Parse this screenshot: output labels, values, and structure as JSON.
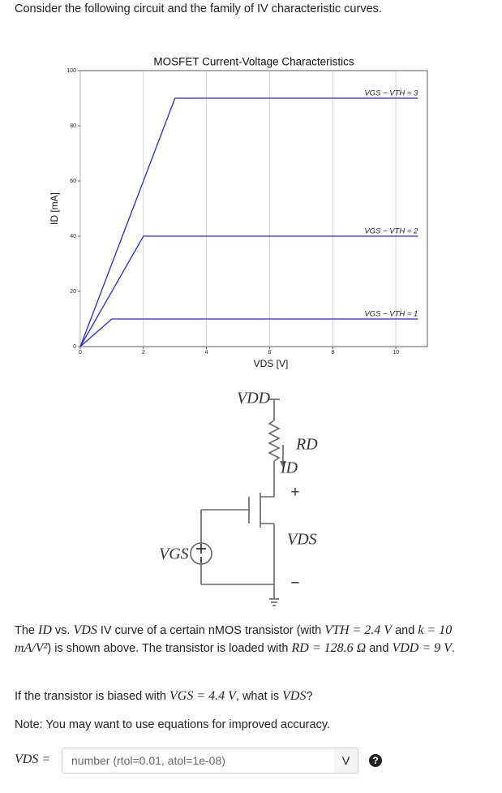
{
  "header": "Consider the following circuit and the family of IV characteristic curves.",
  "chart_data": {
    "type": "line",
    "title": "MOSFET Current-Voltage Characteristics",
    "x_label": "VDS [V]",
    "y_label": "ID [mA]",
    "xlim": [
      0,
      11
    ],
    "ylim": [
      0,
      100
    ],
    "xticks": [
      0,
      2,
      4,
      6,
      8,
      10
    ],
    "yticks": [
      0,
      20,
      40,
      60,
      80,
      100
    ],
    "grid": "x",
    "series": [
      {
        "name": "VGS − VTH = 1",
        "color": "#2a2ac8",
        "x": [
          0,
          1,
          10.7
        ],
        "values": [
          0,
          10,
          10
        ]
      },
      {
        "name": "VGS − VTH = 2",
        "color": "#2a2ac8",
        "x": [
          0,
          2,
          10.7
        ],
        "values": [
          0,
          40,
          40
        ]
      },
      {
        "name": "VGS − VTH = 3",
        "color": "#2a2ac8",
        "x": [
          0,
          3,
          10.7
        ],
        "values": [
          0,
          90,
          90
        ]
      }
    ]
  },
  "circuit": {
    "vdd": "VDD",
    "rd": "RD",
    "id": "ID",
    "vds_plus": "+",
    "vds": "VDS",
    "vds_minus": "−",
    "vgs": "VGS"
  },
  "paragraphs": [
    [
      "The ",
      "ID",
      " vs. ",
      "VDS",
      " IV curve of a certain nMOS transistor (with ",
      "VTH = 2.4 V",
      " and ",
      "k = 10 mA/V²",
      ") is shown above. The transistor is loaded with ",
      "RD = 128.6 Ω",
      " and ",
      "VDD = 9 V",
      "."
    ],
    [
      "If the transistor is biased with ",
      "VGS = 4.4 V",
      ", what is ",
      "VDS",
      "?"
    ],
    [
      "Note: You may want to use equations for improved accuracy."
    ]
  ],
  "answer": {
    "label": "VDS =",
    "placeholder": "number (rtol=0.01, atol=1e-08)",
    "unit": "V",
    "help": "?"
  }
}
